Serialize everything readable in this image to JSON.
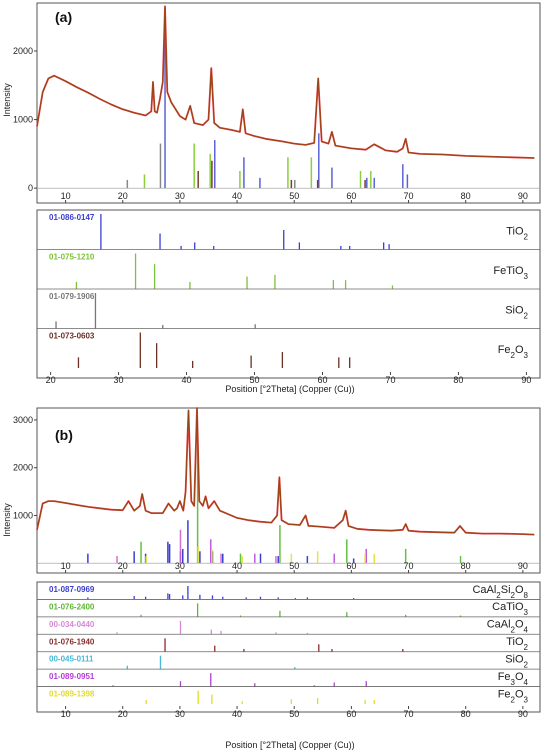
{
  "chart_data": [
    {
      "panel": "(a)",
      "type": "line",
      "ylabel": "Intensity",
      "xlim": [
        5,
        93
      ],
      "ylim": [
        -100,
        2700
      ],
      "x_ticks": [
        10,
        20,
        30,
        40,
        50,
        60,
        70,
        80,
        90
      ],
      "y_ticks": [
        0,
        1000,
        2000
      ],
      "pattern": {
        "x": [
          5,
          6,
          7,
          8,
          9,
          10,
          12,
          14,
          16,
          18,
          20,
          22,
          24,
          25,
          25.3,
          25.6,
          26,
          26.5,
          27,
          27.4,
          27.8,
          28.5,
          30,
          31,
          31.8,
          32.5,
          34,
          35,
          35.5,
          36,
          37,
          39,
          40.5,
          41,
          41.5,
          43,
          45,
          48,
          50,
          52,
          53.5,
          54.2,
          54.8,
          56,
          56.6,
          57.2,
          60,
          62.5,
          64,
          66,
          68,
          69,
          69.5,
          70,
          72,
          76,
          80,
          84,
          88,
          92
        ],
        "y": [
          900,
          1400,
          1600,
          1640,
          1600,
          1560,
          1470,
          1390,
          1300,
          1220,
          1150,
          1100,
          1060,
          1120,
          1550,
          1120,
          1100,
          1300,
          1550,
          2650,
          1400,
          1250,
          1050,
          1000,
          1200,
          950,
          920,
          1000,
          1750,
          950,
          880,
          850,
          820,
          1150,
          800,
          760,
          720,
          680,
          650,
          630,
          660,
          1600,
          680,
          650,
          820,
          620,
          580,
          560,
          640,
          550,
          530,
          580,
          720,
          520,
          500,
          490,
          470,
          460,
          450,
          440
        ]
      },
      "tick_series": [
        {
          "name": "TiO2 ref",
          "color": "#5b62d6",
          "x": [
            27.4,
            36.1,
            41.2,
            44.0,
            54.3,
            56.6,
            62.7,
            64.0,
            69.0,
            69.8
          ],
          "y": [
            2400,
            700,
            450,
            150,
            800,
            300,
            150,
            150,
            350,
            200
          ]
        },
        {
          "name": "FeTiO3 ref",
          "color": "#8bcf3f",
          "x": [
            23.8,
            32.5,
            35.3,
            40.5,
            48.9,
            53.0,
            61.6,
            63.4
          ],
          "y": [
            200,
            650,
            500,
            250,
            450,
            450,
            250,
            250
          ]
        },
        {
          "name": "SiO2 ref",
          "color": "#888888",
          "x": [
            26.6,
            20.8,
            50.1
          ],
          "y": [
            650,
            120,
            120
          ]
        },
        {
          "name": "Fe2O3 ref",
          "color": "#7a3b2e",
          "x": [
            33.2,
            35.6,
            49.5,
            54.1,
            62.4
          ],
          "y": [
            250,
            400,
            120,
            120,
            120
          ]
        }
      ],
      "ref_panel": {
        "xlim": [
          18,
          92
        ],
        "x_ticks": [
          20,
          30,
          40,
          50,
          60,
          70,
          80,
          90
        ],
        "xlabel": "Position [°2Theta] (Copper (Cu))",
        "rows": [
          {
            "code": "01-086-0147",
            "phase": "TiO",
            "sub": "2",
            "color": "#3b3fd0",
            "x": [
              27.4,
              36.1,
              39.2,
              41.2,
              44.0,
              54.3,
              56.6,
              62.7,
              64.0,
              69.0,
              69.8
            ],
            "h": [
              1.0,
              0.45,
              0.1,
              0.2,
              0.1,
              0.55,
              0.2,
              0.1,
              0.1,
              0.2,
              0.15
            ]
          },
          {
            "code": "01-075-1210",
            "phase": "FeTiO",
            "sub": "3",
            "color": "#7cc23a",
            "x": [
              23.8,
              32.5,
              35.3,
              40.5,
              48.9,
              53.0,
              61.6,
              63.4,
              70.3
            ],
            "h": [
              0.2,
              1.0,
              0.7,
              0.2,
              0.35,
              0.4,
              0.25,
              0.25,
              0.1
            ]
          },
          {
            "code": "01-079-1906",
            "phase": "SiO",
            "sub": "2",
            "color": "#777777",
            "x": [
              20.8,
              26.6,
              36.5,
              50.1
            ],
            "h": [
              0.2,
              1.0,
              0.1,
              0.12
            ]
          },
          {
            "code": "01-073-0603",
            "phase": "Fe",
            "sub": "2",
            "phase2": "O",
            "sub2": "3",
            "color": "#6b3124",
            "x": [
              24.1,
              33.2,
              35.6,
              40.9,
              49.5,
              54.1,
              62.4,
              64.0
            ],
            "h": [
              0.3,
              1.0,
              0.7,
              0.2,
              0.35,
              0.45,
              0.3,
              0.3
            ]
          }
        ]
      }
    },
    {
      "panel": "(b)",
      "type": "line",
      "ylabel": "Intensity",
      "xlim": [
        5,
        93
      ],
      "ylim": [
        -100,
        3250
      ],
      "x_ticks": [
        10,
        20,
        30,
        40,
        50,
        60,
        70,
        80,
        90
      ],
      "y_ticks": [
        1000,
        2000,
        3000
      ],
      "pattern": {
        "x": [
          5,
          6,
          7,
          8,
          10,
          12,
          14,
          16,
          18,
          20,
          21,
          22,
          23,
          23.4,
          24,
          25,
          27,
          28,
          29,
          29.5,
          30,
          30.6,
          31,
          31.5,
          32,
          32.5,
          33,
          33.4,
          34,
          34.5,
          35,
          36,
          37,
          38,
          40,
          42,
          44,
          46,
          47,
          47.4,
          47.8,
          49,
          51,
          52,
          52.5,
          53,
          55,
          57,
          58.5,
          59,
          59.5,
          61,
          63,
          65,
          67,
          69,
          69.5,
          70,
          72,
          75,
          78,
          79,
          80,
          83,
          86,
          90,
          92
        ],
        "y": [
          700,
          1250,
          1300,
          1300,
          1260,
          1220,
          1180,
          1150,
          1120,
          1110,
          1300,
          1100,
          1200,
          1450,
          1100,
          1050,
          1050,
          1250,
          1100,
          1150,
          1300,
          1100,
          1500,
          3200,
          1300,
          1200,
          3250,
          1300,
          1200,
          1400,
          1150,
          1300,
          1100,
          1050,
          950,
          900,
          870,
          850,
          1000,
          1800,
          900,
          820,
          800,
          1000,
          780,
          780,
          760,
          740,
          900,
          1100,
          780,
          720,
          700,
          690,
          680,
          700,
          820,
          680,
          660,
          650,
          640,
          780,
          640,
          620,
          620,
          610,
          600
        ]
      },
      "tick_series": [
        {
          "name": "CaAl2Si2O8 ref",
          "color": "#3b3fd0",
          "x": [
            13.9,
            22.0,
            24.0,
            27.9,
            28.2,
            30.5,
            31.4,
            33.5,
            35.7,
            37.5,
            44.1,
            47.2,
            52.3,
            60.4
          ],
          "y": [
            200,
            250,
            200,
            450,
            400,
            300,
            900,
            250,
            250,
            200,
            200,
            150,
            150,
            100
          ]
        },
        {
          "name": "CaTiO3 ref",
          "color": "#66c040",
          "x": [
            23.2,
            33.1,
            40.6,
            47.5,
            59.2,
            69.5,
            79.1
          ],
          "y": [
            450,
            2500,
            200,
            800,
            500,
            300,
            150
          ]
        },
        {
          "name": "CaAl2O4 ref",
          "color": "#d070d0",
          "x": [
            19.0,
            30.1,
            35.5,
            37.2,
            46.8
          ],
          "y": [
            150,
            700,
            300,
            200,
            150
          ]
        },
        {
          "name": "Fe3O4 ref",
          "color": "#c05ae0",
          "x": [
            30.1,
            35.4,
            43.1,
            57.0,
            62.6
          ],
          "y": [
            250,
            500,
            200,
            200,
            300
          ]
        },
        {
          "name": "Fe2O3 ref",
          "color": "#e7e34a",
          "x": [
            24.1,
            33.2,
            35.6,
            40.9,
            49.5,
            54.1,
            62.4,
            64.0
          ],
          "y": [
            150,
            350,
            300,
            150,
            200,
            250,
            200,
            200
          ]
        }
      ],
      "ref_panel": {
        "xlim": [
          5,
          93
        ],
        "x_ticks": [
          10,
          20,
          30,
          40,
          50,
          60,
          70,
          80,
          90
        ],
        "xlabel": "Position [°2Theta] (Copper (Cu))",
        "rows": [
          {
            "code": "01-087-0969",
            "phase": "CaAl",
            "sub": "2",
            "phase2": "Si",
            "sub2": "2",
            "phase3": "O",
            "sub3": "8",
            "color": "#3b3fd0",
            "x": [
              13.9,
              22.0,
              24.0,
              27.9,
              28.2,
              30.5,
              31.4,
              33.5,
              35.7,
              37.5,
              41.6,
              44.1,
              47.2,
              50.2,
              52.3,
              60.4
            ],
            "h": [
              0.15,
              0.25,
              0.2,
              0.45,
              0.4,
              0.3,
              1.0,
              0.35,
              0.3,
              0.2,
              0.15,
              0.2,
              0.15,
              0.1,
              0.15,
              0.1
            ]
          },
          {
            "code": "01-076-2400",
            "phase": "CaTiO",
            "sub": "3",
            "color": "#5cb832",
            "x": [
              23.2,
              33.1,
              40.6,
              47.5,
              59.2,
              69.5,
              79.1
            ],
            "h": [
              0.15,
              1.0,
              0.1,
              0.45,
              0.35,
              0.15,
              0.1
            ]
          },
          {
            "code": "00-034-0440",
            "phase": "CaAl",
            "sub": "2",
            "phase2": "O",
            "sub2": "4",
            "color": "#d68ad6",
            "x": [
              19.0,
              30.1,
              35.5,
              37.2,
              46.8,
              52.3
            ],
            "h": [
              0.15,
              1.0,
              0.35,
              0.25,
              0.15,
              0.1
            ]
          },
          {
            "code": "01-076-1940",
            "phase": "TiO",
            "sub": "2",
            "color": "#8a2d2d",
            "x": [
              27.4,
              36.1,
              41.2,
              54.3,
              56.6,
              69.0
            ],
            "h": [
              1.0,
              0.45,
              0.2,
              0.55,
              0.2,
              0.2
            ]
          },
          {
            "code": "00-045-0111",
            "phase": "SiO",
            "sub": "2",
            "color": "#48b8d8",
            "x": [
              20.8,
              26.6,
              50.1
            ],
            "h": [
              0.25,
              1.0,
              0.15
            ]
          },
          {
            "code": "01-089-0951",
            "phase": "Fe",
            "sub": "3",
            "phase2": "O",
            "sub2": "4",
            "color": "#b43cd6",
            "x": [
              18.3,
              30.1,
              35.4,
              43.1,
              53.5,
              57.0,
              62.6
            ],
            "h": [
              0.1,
              0.4,
              1.0,
              0.25,
              0.1,
              0.3,
              0.4
            ]
          },
          {
            "code": "01-089-1398",
            "phase": "Fe",
            "sub": "2",
            "phase2": "O",
            "sub2": "3",
            "color": "#e0dc2e",
            "x": [
              24.1,
              33.2,
              35.6,
              40.9,
              49.5,
              54.1,
              62.4,
              64.0
            ],
            "h": [
              0.3,
              1.0,
              0.7,
              0.2,
              0.35,
              0.45,
              0.3,
              0.3
            ]
          }
        ]
      }
    }
  ]
}
